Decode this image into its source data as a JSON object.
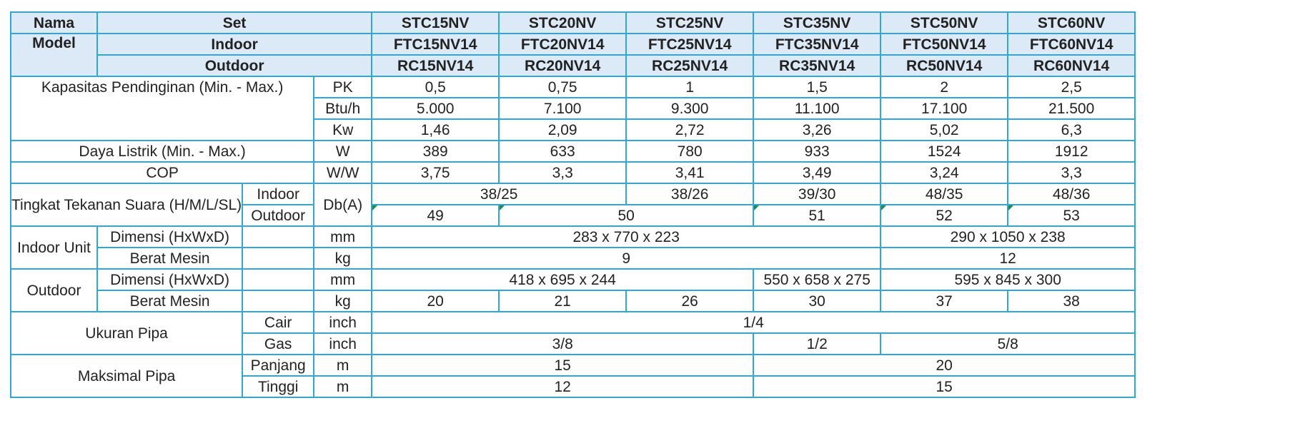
{
  "header": {
    "nama_model": [
      "Nama",
      "Model"
    ],
    "set_label": "Set",
    "indoor_label": "Indoor",
    "outdoor_label": "Outdoor",
    "set": [
      "STC15NV",
      "STC20NV",
      "STC25NV",
      "STC35NV",
      "STC50NV",
      "STC60NV"
    ],
    "indoor": [
      "FTC15NV14",
      "FTC20NV14",
      "FTC25NV14",
      "FTC35NV14",
      "FTC50NV14",
      "FTC60NV14"
    ],
    "outdoor": [
      "RC15NV14",
      "RC20NV14",
      "RC25NV14",
      "RC35NV14",
      "RC50NV14",
      "RC60NV14"
    ]
  },
  "capacity": {
    "label": "Kapasitas Pendinginan (Min. - Max.)",
    "pk": {
      "unit": "PK",
      "values": [
        "0,5",
        "0,75",
        "1",
        "1,5",
        "2",
        "2,5"
      ]
    },
    "btu": {
      "unit": "Btu/h",
      "values": [
        "5.000",
        "7.100",
        "9.300",
        "11.100",
        "17.100",
        "21.500"
      ]
    },
    "kw": {
      "unit": "Kw",
      "values": [
        "1,46",
        "2,09",
        "2,72",
        "3,26",
        "5,02",
        "6,3"
      ]
    }
  },
  "power": {
    "label": "Daya Listrik (Min. - Max.)",
    "unit": "W",
    "values": [
      "389",
      "633",
      "780",
      "933",
      "1524",
      "1912"
    ]
  },
  "cop": {
    "label": "COP",
    "unit": "W/W",
    "values": [
      "3,75",
      "3,3",
      "3,41",
      "3,49",
      "3,24",
      "3,3"
    ]
  },
  "noise": {
    "label": "Tingkat Tekanan Suara (H/M/L/SL)",
    "unit": "Db(A)",
    "indoor_label": "Indoor",
    "outdoor_label": "Outdoor",
    "indoor_values": [
      "38/25",
      "38/26",
      "39/30",
      "48/35",
      "48/36"
    ],
    "outdoor_values": [
      "49",
      "50",
      "51",
      "52",
      "53"
    ]
  },
  "indoor_unit": {
    "label": "Indoor Unit",
    "dim_label": "Dimensi (HxWxD)",
    "dim_unit": "mm",
    "dim_values": [
      "283 x 770 x 223",
      "290 x 1050 x 238"
    ],
    "weight_label": "Berat Mesin",
    "weight_unit": "kg",
    "weight_values": [
      "9",
      "12"
    ]
  },
  "outdoor_unit": {
    "label": "Outdoor",
    "dim_label": "Dimensi (HxWxD)",
    "dim_unit": "mm",
    "dim_values": [
      "418 x 695 x 244",
      "550 x 658 x 275",
      "595 x 845 x 300"
    ],
    "weight_label": "Berat Mesin",
    "weight_unit": "kg",
    "weight_values": [
      "20",
      "21",
      "26",
      "30",
      "37",
      "38"
    ]
  },
  "pipe": {
    "label": "Ukuran Pipa",
    "liquid_label": "Cair",
    "liquid_unit": "inch",
    "liquid_value": "1/4",
    "gas_label": "Gas",
    "gas_unit": "inch",
    "gas_values": [
      "3/8",
      "1/2",
      "5/8"
    ]
  },
  "max_pipe": {
    "label": "Maksimal Pipa",
    "length_label": "Panjang",
    "length_unit": "m",
    "length_values": [
      "15",
      "20"
    ],
    "height_label": "Tinggi",
    "height_unit": "m",
    "height_values": [
      "12",
      "15"
    ]
  },
  "colors": {
    "border": "#2fa8d6",
    "header_bg": "#dce9f6",
    "corner_marker": "#1d8f3c"
  }
}
